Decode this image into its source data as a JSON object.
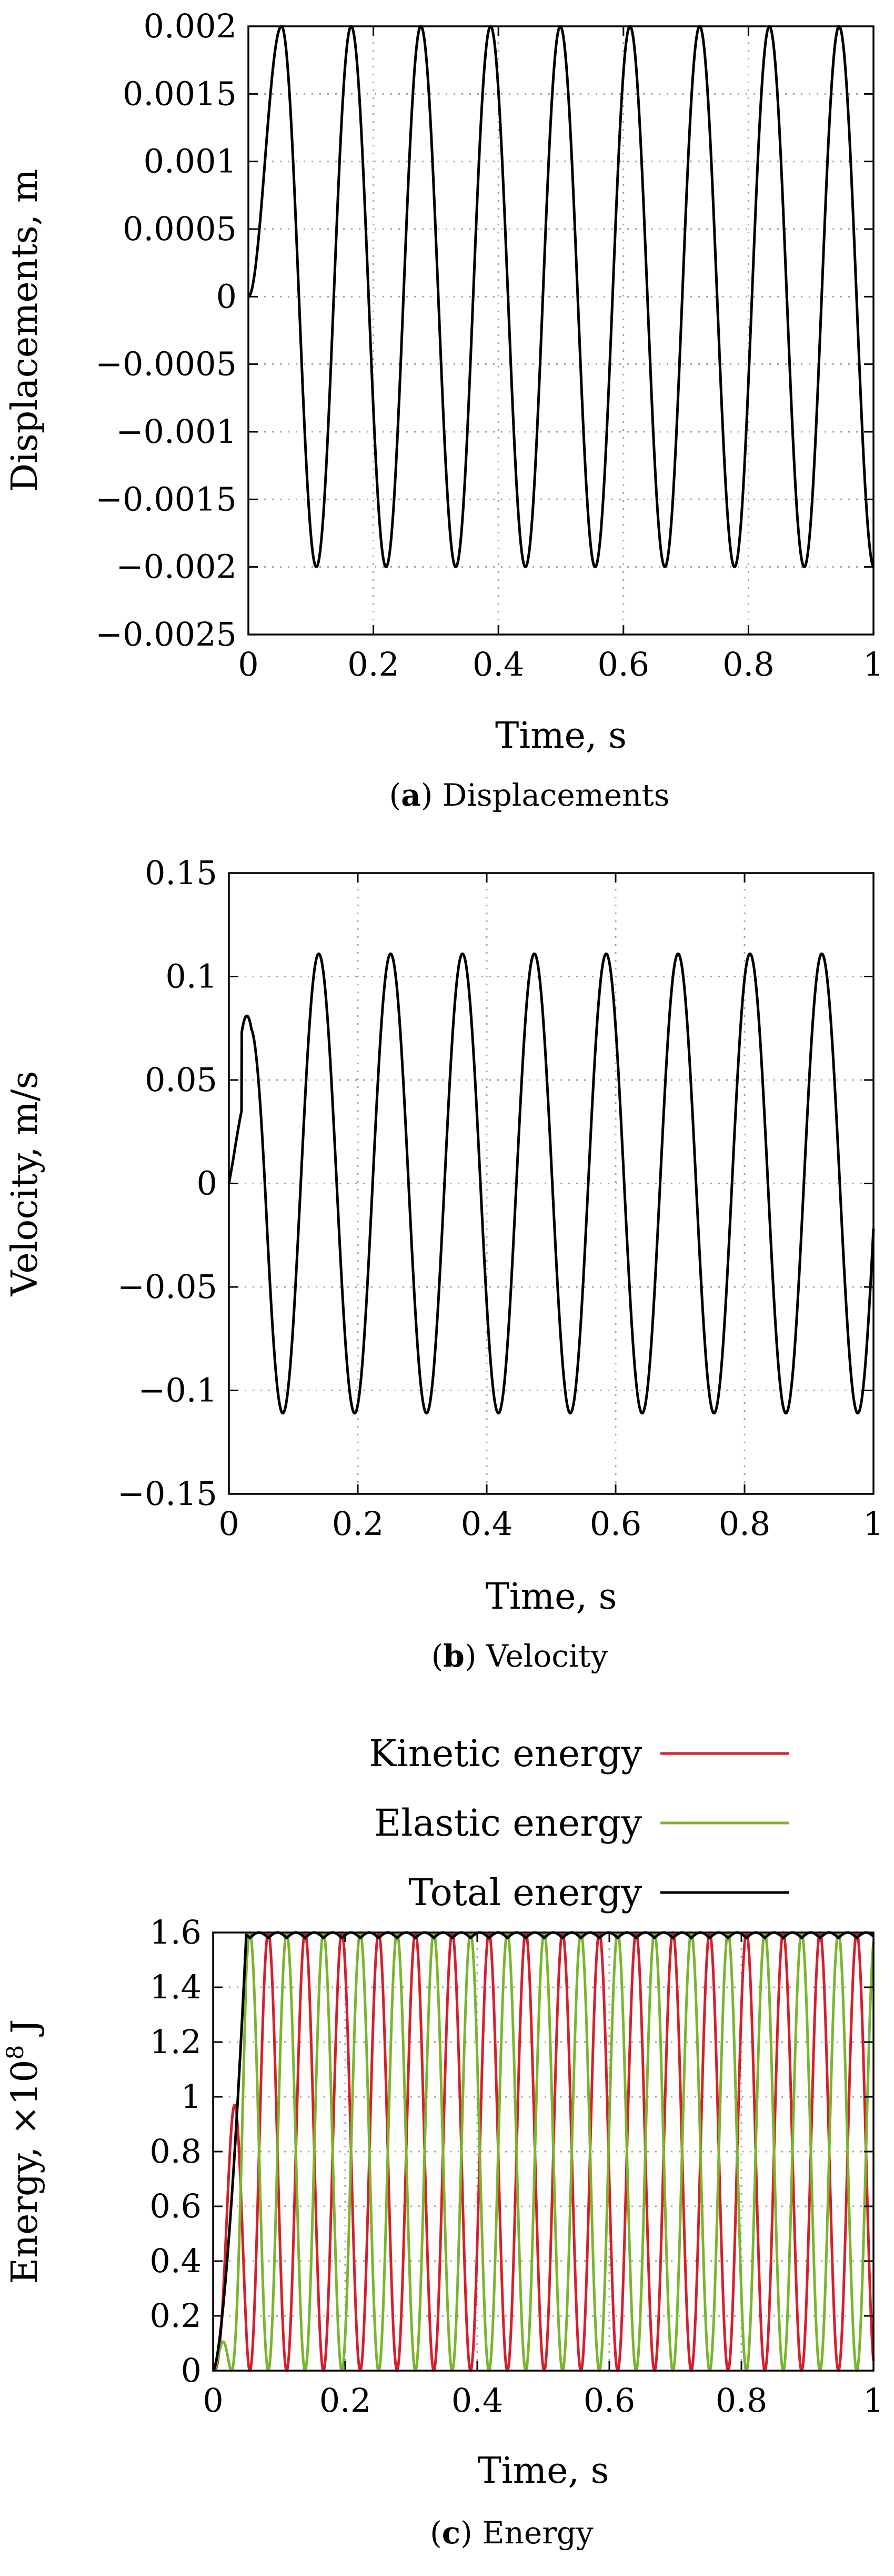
{
  "chart_data": [
    {
      "type": "line",
      "panel_label": "a",
      "caption": "Displacements",
      "xlabel": "Time, s",
      "ylabel": "Displacements, m",
      "xlim": [
        0,
        1
      ],
      "ylim": [
        -0.0025,
        0.002
      ],
      "x_ticks": [
        "0",
        "0.2",
        "0.4",
        "0.6",
        "0.8",
        "1"
      ],
      "y_ticks": [
        "−0.0025",
        "−0.002",
        "−0.0015",
        "−0.001",
        "−0.0005",
        "0",
        "0.0005",
        "0.001",
        "0.0015",
        "0.002"
      ],
      "grid": true,
      "series": [
        {
          "color": "#000000",
          "amplitude": 0.002,
          "period": 0.1115,
          "peak_times": [
            0.053,
            0.165,
            0.276,
            0.388,
            0.499,
            0.611,
            0.722,
            0.834,
            0.945
          ]
        }
      ]
    },
    {
      "type": "line",
      "panel_label": "b",
      "caption": "Velocity",
      "xlabel": "Time, s",
      "ylabel": "Velocity, m/s",
      "xlim": [
        0,
        1
      ],
      "ylim": [
        -0.15,
        0.15
      ],
      "x_ticks": [
        "0",
        "0.2",
        "0.4",
        "0.6",
        "0.8",
        "1"
      ],
      "y_ticks": [
        "−0.15",
        "−0.1",
        "−0.05",
        "0",
        "0.05",
        "0.1",
        "0.15"
      ],
      "grid": true,
      "series": [
        {
          "color": "#000000",
          "amplitude": 0.111,
          "first_peak": 0.081,
          "period": 0.1115
        }
      ]
    },
    {
      "type": "line",
      "panel_label": "c",
      "caption": "Energy",
      "xlabel": "Time, s",
      "ylabel": "Energy, ×10⁸ J",
      "xlim": [
        0,
        1
      ],
      "ylim": [
        0,
        1.6
      ],
      "x_ticks": [
        "0",
        "0.2",
        "0.4",
        "0.6",
        "0.8",
        "1"
      ],
      "y_ticks": [
        "0",
        "0.2",
        "0.4",
        "0.6",
        "0.8",
        "1",
        "1.2",
        "1.4",
        "1.6"
      ],
      "grid": true,
      "legend_position": "top-right",
      "series": [
        {
          "name": "Kinetic energy",
          "color": "#d4202c",
          "max": 1.6,
          "period": 0.0557
        },
        {
          "name": "Elastic energy",
          "color": "#7ab52e",
          "max": 1.6,
          "period": 0.0557
        },
        {
          "name": "Total energy",
          "color": "#000000",
          "plateau": 1.58,
          "max": 1.6
        }
      ]
    }
  ]
}
